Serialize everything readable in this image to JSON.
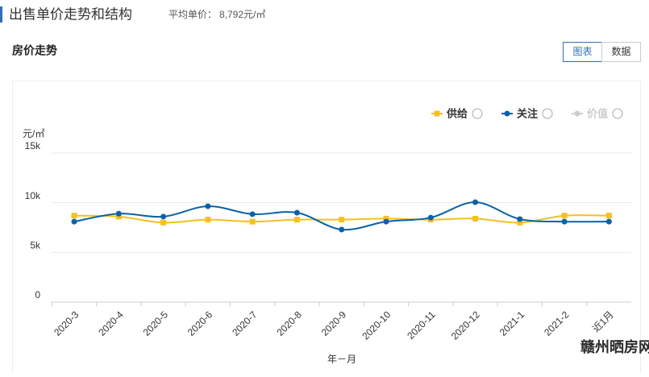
{
  "header": {
    "title": "出售单价走势和结构",
    "average_label": "平均单价：",
    "average_value": "8,792元/㎡"
  },
  "section_title": "房价走势",
  "tabs": [
    "图表",
    "数据"
  ],
  "watermark": "赣州晒房网",
  "chart_data": {
    "type": "line",
    "y_unit": "元/㎡",
    "x_label": "年－月",
    "categories": [
      "2020-3",
      "2020-4",
      "2020-5",
      "2020-6",
      "2020-7",
      "2020-8",
      "2020-9",
      "2020-10",
      "2020-11",
      "2020-12",
      "2021-1",
      "2021-2",
      "近1月"
    ],
    "series": [
      {
        "name": "供给",
        "color": "#f5c021",
        "marker": "square",
        "values": [
          8700,
          8600,
          8000,
          8300,
          8100,
          8300,
          8300,
          8400,
          8300,
          8400,
          8000,
          8700,
          8700
        ]
      },
      {
        "name": "关注",
        "color": "#0a62a8",
        "marker": "circle",
        "values": [
          8100,
          8900,
          8600,
          9650,
          8850,
          9000,
          7300,
          8100,
          8500,
          10050,
          8350,
          8100,
          8100
        ]
      },
      {
        "name": "价值",
        "color": "#cccccc",
        "marker": "circle",
        "visible": false,
        "values": [
          null,
          null,
          null,
          null,
          null,
          null,
          null,
          null,
          null,
          null,
          null,
          null,
          null
        ]
      }
    ],
    "ylim": [
      0,
      15000
    ],
    "yticks": [
      0,
      {
        "value": 5000,
        "label": "5k"
      },
      {
        "value": 10000,
        "label": "10k"
      },
      {
        "value": 15000,
        "label": "15k"
      }
    ],
    "grid": true,
    "smooth": true,
    "legend": "top-right"
  }
}
